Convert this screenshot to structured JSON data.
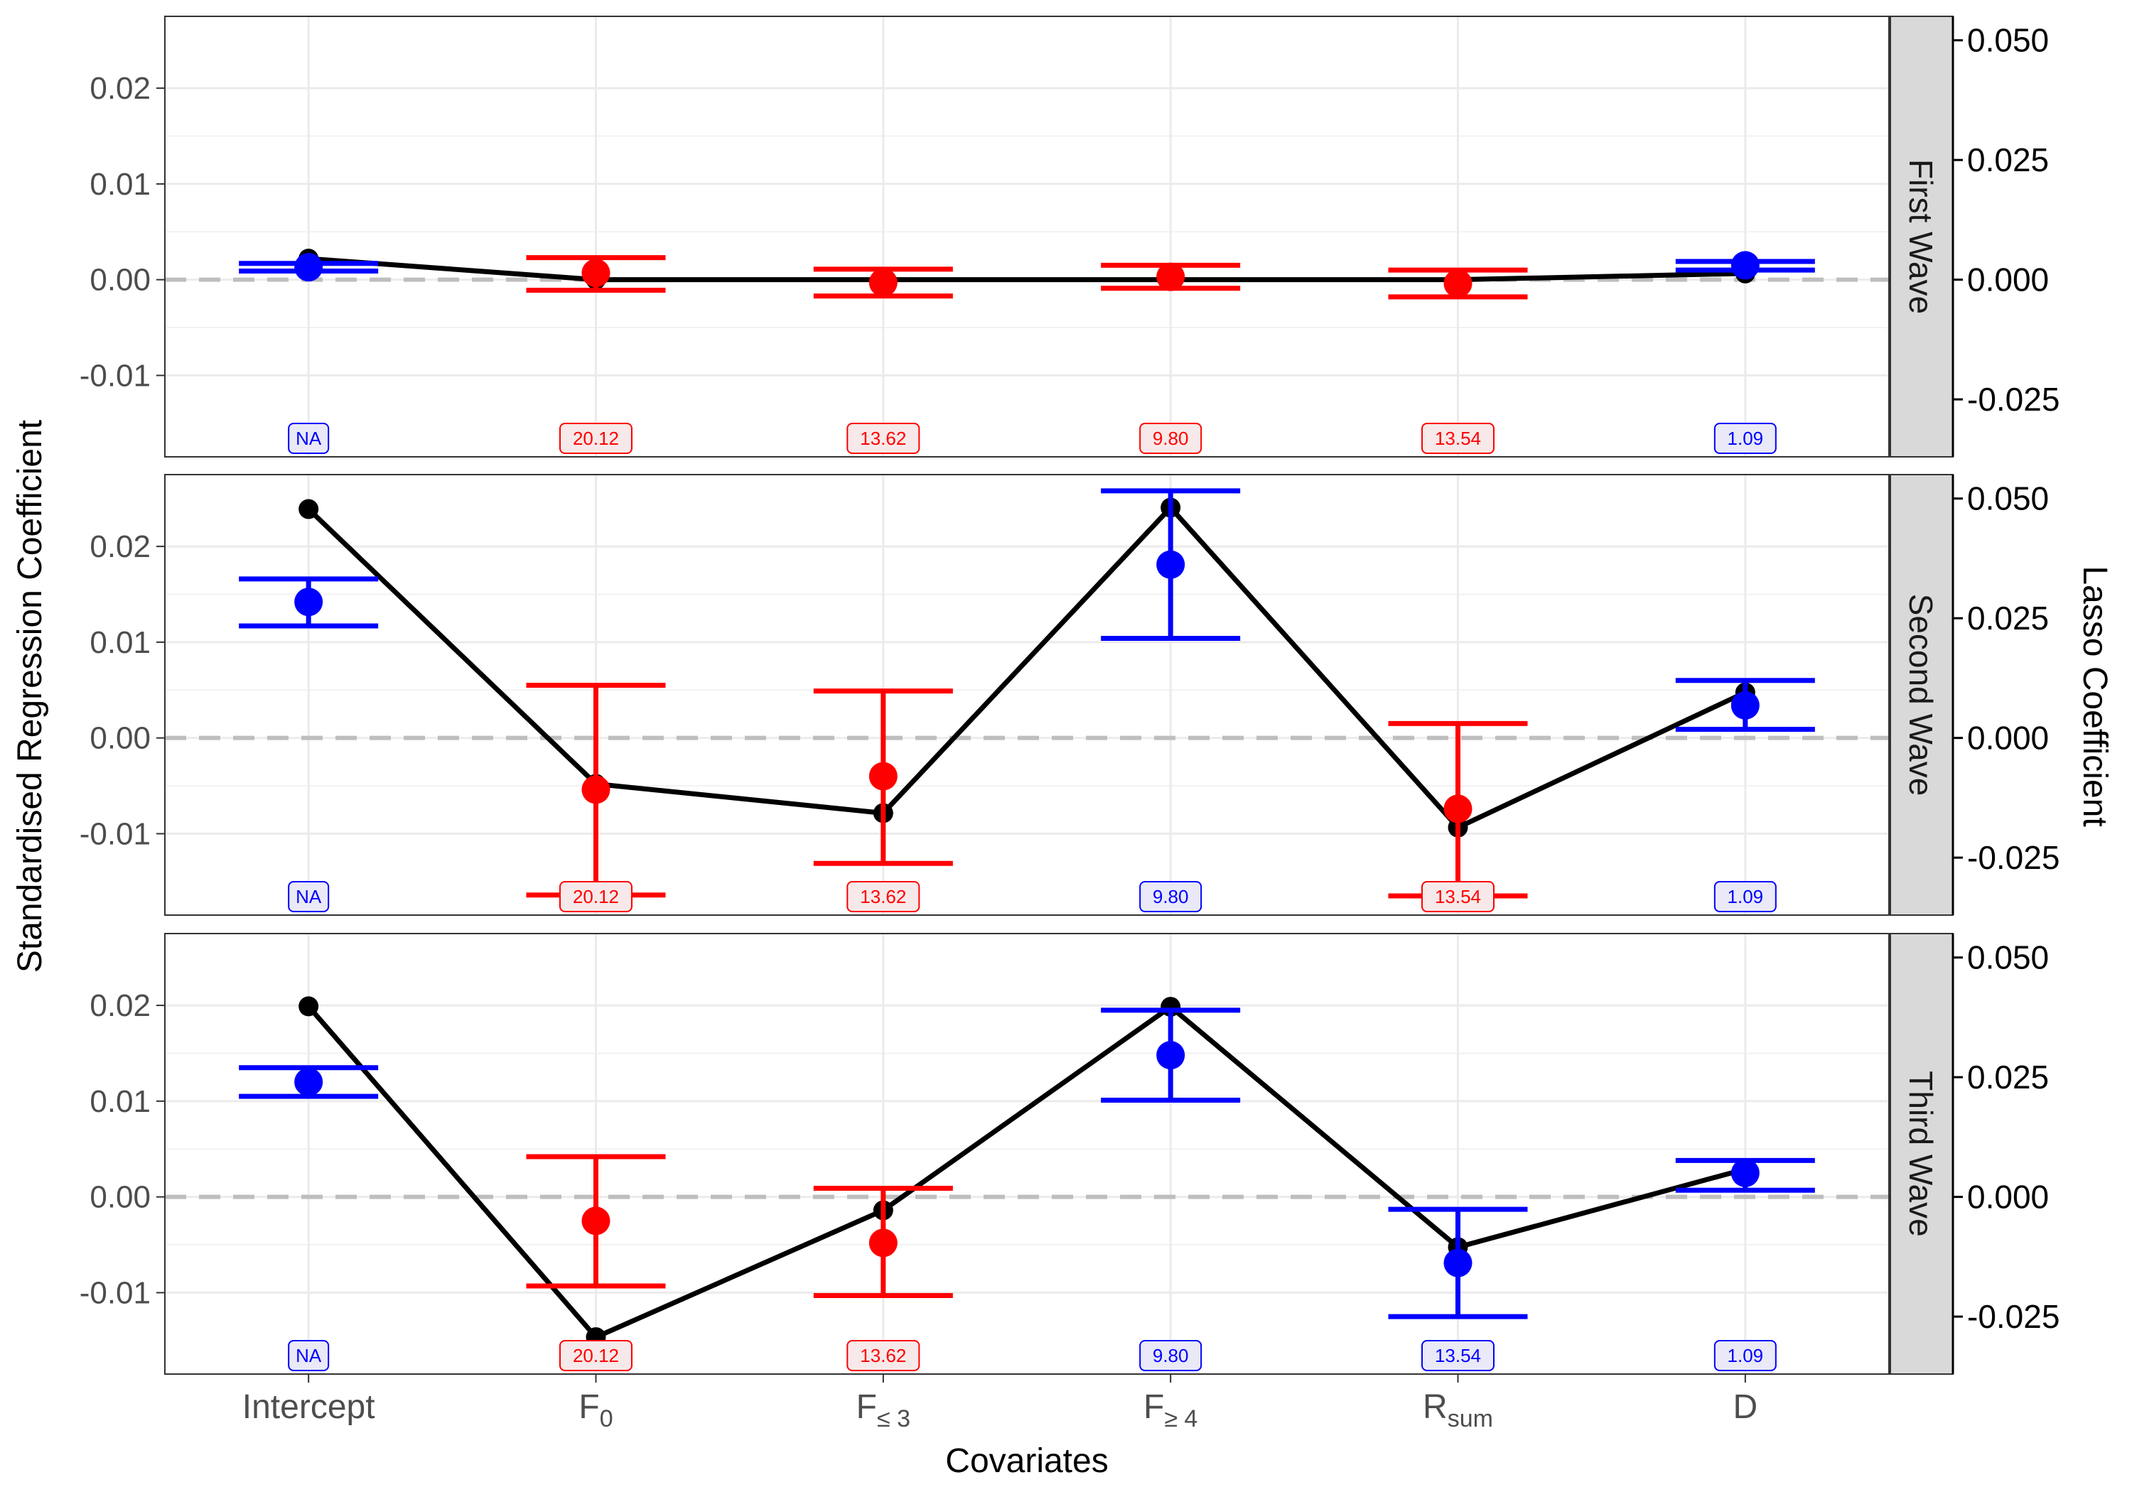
{
  "chart_data": {
    "type": "scatter",
    "xlabel": "Covariates",
    "ylabel": "Standardised Regression Coefficient",
    "ylabel_right": "Lasso Coefficient",
    "categories": [
      {
        "base": "Intercept",
        "sub": ""
      },
      {
        "base": "F",
        "sub": "0"
      },
      {
        "base": "F",
        "sub": "≤ 3"
      },
      {
        "base": "F",
        "sub": "≥ 4"
      },
      {
        "base": "R",
        "sub": "sum"
      },
      {
        "base": "D",
        "sub": ""
      }
    ],
    "ylim": [
      -0.0185,
      0.0275
    ],
    "yticks": [
      -0.01,
      0.0,
      0.01,
      0.02
    ],
    "ytick_labels": [
      "-0.01",
      "0.00",
      "0.01",
      "0.02"
    ],
    "ylim_right": [
      -0.037,
      0.055
    ],
    "yticks_right": [
      -0.025,
      0.0,
      0.025,
      0.05
    ],
    "ytick_labels_right": [
      "-0.025",
      "0.000",
      "0.025",
      "0.050"
    ],
    "colors": {
      "positive": "#0000ff",
      "negative": "#ff0000",
      "lasso": "#000000",
      "reference": "#bebebe"
    },
    "panels": [
      {
        "strip": "First Wave",
        "estimate": [
          0.0013,
          0.0007,
          -0.0003,
          0.0003,
          -0.0004,
          0.0015
        ],
        "ci_low": [
          0.0009,
          -0.0011,
          -0.0017,
          -0.0009,
          -0.0018,
          0.001
        ],
        "ci_high": [
          0.0017,
          0.0023,
          0.0011,
          0.0015,
          0.001,
          0.0019
        ],
        "color": [
          "blue",
          "red",
          "red",
          "red",
          "red",
          "blue"
        ],
        "lasso": [
          0.0044,
          0.0,
          0.0,
          0.0,
          0.0,
          0.0013
        ],
        "vif": [
          "NA",
          "20.12",
          "13.62",
          "9.80",
          "13.54",
          "1.09"
        ],
        "vif_color": [
          "blue",
          "red",
          "red",
          "red",
          "red",
          "blue"
        ]
      },
      {
        "strip": "Second Wave",
        "estimate": [
          0.0142,
          -0.0054,
          -0.004,
          0.0181,
          -0.0074,
          0.0034
        ],
        "ci_low": [
          0.0117,
          -0.0164,
          -0.0131,
          0.0104,
          -0.0165,
          0.0009
        ],
        "ci_high": [
          0.0166,
          0.0055,
          0.0049,
          0.0258,
          0.0015,
          0.006
        ],
        "color": [
          "blue",
          "red",
          "red",
          "blue",
          "red",
          "blue"
        ],
        "lasso": [
          0.0478,
          -0.0096,
          -0.0157,
          0.0481,
          -0.0187,
          0.0095
        ],
        "vif": [
          "NA",
          "20.12",
          "13.62",
          "9.80",
          "13.54",
          "1.09"
        ],
        "vif_color": [
          "blue",
          "red",
          "red",
          "blue",
          "red",
          "blue"
        ]
      },
      {
        "strip": "Third Wave",
        "estimate": [
          0.012,
          -0.0025,
          -0.0048,
          0.0148,
          -0.0069,
          0.0025
        ],
        "ci_low": [
          0.0105,
          -0.0093,
          -0.0103,
          0.0101,
          -0.0125,
          0.0007
        ],
        "ci_high": [
          0.0135,
          0.0042,
          0.0009,
          0.0195,
          -0.0013,
          0.0038
        ],
        "color": [
          "blue",
          "red",
          "red",
          "blue",
          "blue",
          "blue"
        ],
        "lasso": [
          0.0398,
          -0.0293,
          -0.0028,
          0.0397,
          -0.0105,
          0.0058
        ],
        "vif": [
          "NA",
          "20.12",
          "13.62",
          "9.80",
          "13.54",
          "1.09"
        ],
        "vif_color": [
          "blue",
          "red",
          "red",
          "blue",
          "blue",
          "blue"
        ]
      }
    ]
  }
}
